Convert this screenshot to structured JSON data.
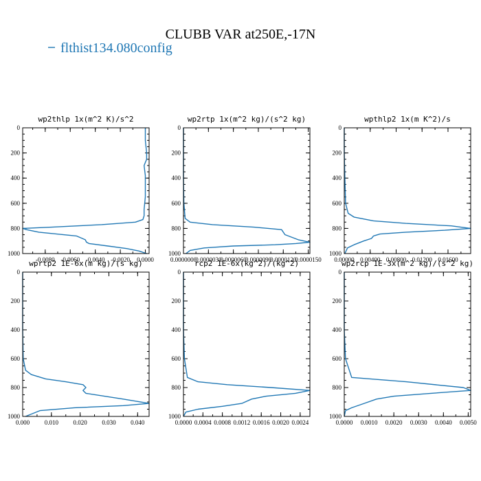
{
  "figure": {
    "title": "CLUBB VAR at250E,-17N",
    "legend": [
      {
        "label": "flthist134.080config",
        "color": "#1f77b4"
      }
    ]
  },
  "chart_data": [
    {
      "type": "line",
      "title": "wp2thlp  1x(m^2 K)/s^2",
      "xlim": [
        -0.0098,
        0.0003
      ],
      "ylim": [
        1000,
        0
      ],
      "xticks": [
        -0.008,
        -0.006,
        -0.004,
        -0.002,
        0.0
      ],
      "xtick_labels": [
        "-0.0080",
        "-0.0060",
        "-0.0040",
        "-0.0020",
        "0.0000"
      ],
      "yticks": [
        0,
        200,
        400,
        600,
        800,
        1000
      ],
      "ytick_labels": [
        "0",
        "200",
        "400",
        "600",
        "800",
        "1000"
      ],
      "series": [
        {
          "color": "#1f77b4",
          "x": [
            0.0,
            0.0,
            0.0001,
            0.0001,
            -0.0001,
            0.0,
            0.0,
            0.0,
            -0.0001,
            -0.0001,
            -0.0002,
            -0.0008,
            -0.0035,
            -0.0075,
            -0.0098,
            -0.0095,
            -0.0085,
            -0.0055,
            -0.0048,
            -0.0047,
            -0.0045,
            -0.003,
            -0.0015,
            -0.0005,
            0.0001
          ],
          "y": [
            0,
            100,
            200,
            250,
            300,
            380,
            450,
            550,
            650,
            700,
            730,
            750,
            770,
            790,
            800,
            810,
            830,
            860,
            890,
            910,
            920,
            940,
            960,
            980,
            1000
          ]
        }
      ]
    },
    {
      "type": "line",
      "title": "wp2rtp  1x(m^2 kg)/(s^2 kg)",
      "xlim": [
        0.0,
        1.52e-05
      ],
      "ylim": [
        1000,
        0
      ],
      "xticks": [
        0.0,
        3e-06,
        6e-06,
        9e-06,
        1.2e-05,
        1.5e-05
      ],
      "xtick_labels": [
        "0.0000000",
        "0.0000030",
        "0.0000060",
        "0.0000090",
        "0.0000120",
        "0.0000150"
      ],
      "yticks": [
        0,
        200,
        400,
        600,
        800,
        1000
      ],
      "ytick_labels": [
        "0",
        "200",
        "400",
        "600",
        "800",
        "1000"
      ],
      "series": [
        {
          "color": "#1f77b4",
          "x": [
            0.0,
            0.0,
            0.0,
            5e-08,
            2e-07,
            8e-07,
            3.5e-06,
            8.5e-06,
            1.18e-05,
            1.22e-05,
            1.38e-05,
            1.52e-05,
            1.35e-05,
            1.1e-05,
            6e-06,
            2.5e-06,
            8e-07,
            3e-07
          ],
          "y": [
            0,
            200,
            400,
            600,
            720,
            750,
            770,
            790,
            810,
            850,
            890,
            910,
            920,
            930,
            940,
            955,
            975,
            1000
          ]
        }
      ]
    },
    {
      "type": "line",
      "title": "wpthlp2  1x(m K^2)/s",
      "xlim": [
        0.0,
        0.0195
      ],
      "ylim": [
        1000,
        0
      ],
      "xticks": [
        0.0,
        0.004,
        0.008,
        0.012,
        0.016
      ],
      "xtick_labels": [
        "0.00000",
        "0.00400",
        "0.00800",
        "0.01200",
        "0.01600"
      ],
      "yticks": [
        0,
        200,
        400,
        600,
        800,
        1000
      ],
      "ytick_labels": [
        "0",
        "200",
        "400",
        "600",
        "800",
        "1000"
      ],
      "series": [
        {
          "color": "#1f77b4",
          "x": [
            0.0,
            0.0,
            0.0001,
            0.0002,
            0.0006,
            0.0015,
            0.0045,
            0.0095,
            0.0165,
            0.0195,
            0.0155,
            0.0095,
            0.0055,
            0.0045,
            0.0042,
            0.003,
            0.0015,
            0.0005,
            0.0001
          ],
          "y": [
            0,
            200,
            400,
            600,
            680,
            710,
            740,
            760,
            780,
            800,
            815,
            830,
            845,
            860,
            880,
            900,
            930,
            955,
            1000
          ]
        }
      ]
    },
    {
      "type": "line",
      "title": "wprtp2  1E-6x(m kg)/(s kg)",
      "xlim": [
        0.0,
        0.044
      ],
      "ylim": [
        1000,
        0
      ],
      "xticks": [
        0.0,
        0.01,
        0.02,
        0.03,
        0.04
      ],
      "xtick_labels": [
        "0.000",
        "0.010",
        "0.020",
        "0.030",
        "0.040"
      ],
      "yticks": [
        0,
        200,
        400,
        600,
        800,
        1000
      ],
      "ytick_labels": [
        "0",
        "200",
        "400",
        "600",
        "800",
        "1000"
      ],
      "series": [
        {
          "color": "#1f77b4",
          "x": [
            0.0,
            0.0,
            0.0,
            0.0002,
            0.001,
            0.003,
            0.008,
            0.015,
            0.021,
            0.022,
            0.021,
            0.022,
            0.035,
            0.044,
            0.035,
            0.018,
            0.006,
            0.001
          ],
          "y": [
            0,
            200,
            400,
            600,
            680,
            710,
            740,
            760,
            780,
            800,
            820,
            840,
            880,
            910,
            925,
            940,
            960,
            1000
          ]
        }
      ]
    },
    {
      "type": "line",
      "title": "rcp2  1E-6x(kg^2)/(kg^2)",
      "xlim": [
        0.0,
        0.0026
      ],
      "ylim": [
        1000,
        0
      ],
      "xticks": [
        0.0,
        0.0004,
        0.0008,
        0.0012,
        0.0016,
        0.002,
        0.0024
      ],
      "xtick_labels": [
        "0.0000",
        "0.0004",
        "0.0008",
        "0.0012",
        "0.0016",
        "0.0020",
        "0.0024"
      ],
      "yticks": [
        0,
        200,
        400,
        600,
        800,
        1000
      ],
      "ytick_labels": [
        "0",
        "200",
        "400",
        "600",
        "800",
        "1000"
      ],
      "series": [
        {
          "color": "#1f77b4",
          "x": [
            0.0,
            0.0,
            0.0,
            2e-05,
            8e-05,
            0.0003,
            0.0009,
            0.0018,
            0.0026,
            0.0023,
            0.0017,
            0.0014,
            0.0012,
            0.0008,
            0.0003,
            5e-05,
            0.0
          ],
          "y": [
            0,
            200,
            400,
            600,
            730,
            760,
            780,
            800,
            820,
            840,
            860,
            880,
            910,
            930,
            950,
            970,
            1000
          ]
        }
      ]
    },
    {
      "type": "line",
      "title": "wp2rcp  1E-3x(m^2 kg)/(s^2 kg)",
      "xlim": [
        0.0,
        0.0051
      ],
      "ylim": [
        1000,
        0
      ],
      "xticks": [
        0.0,
        0.001,
        0.002,
        0.003,
        0.004,
        0.005
      ],
      "xtick_labels": [
        "0.0000",
        "0.0010",
        "0.0020",
        "0.0030",
        "0.0040",
        "0.0050"
      ],
      "yticks": [
        0,
        200,
        400,
        600,
        800,
        1000
      ],
      "ytick_labels": [
        "0",
        "200",
        "400",
        "600",
        "800",
        "1000"
      ],
      "series": [
        {
          "color": "#1f77b4",
          "x": [
            0.0,
            0.0,
            0.0,
            5e-05,
            0.0003,
            0.0025,
            0.0048,
            0.0051,
            0.0035,
            0.002,
            0.0013,
            0.0008,
            0.0003,
            5e-05,
            0.0
          ],
          "y": [
            0,
            200,
            400,
            600,
            730,
            760,
            800,
            820,
            840,
            860,
            880,
            910,
            940,
            960,
            1000
          ]
        }
      ]
    }
  ]
}
